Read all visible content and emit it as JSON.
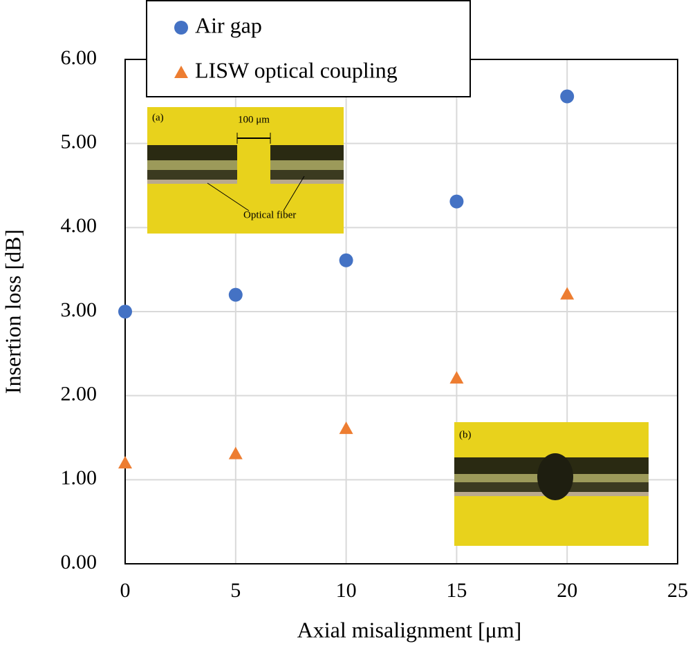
{
  "chart_data": {
    "type": "scatter",
    "x_label": "Axial misalignment [μm]",
    "y_label": "Insertion loss [dB]",
    "x": [
      0,
      5,
      10,
      15,
      20
    ],
    "series": [
      {
        "name": "Air gap",
        "color": "#4472c4",
        "marker": "circle",
        "values": [
          3.0,
          3.2,
          3.61,
          4.31,
          5.56
        ]
      },
      {
        "name": "LISW optical coupling",
        "color": "#ed7d31",
        "marker": "triangle",
        "values": [
          1.2,
          1.31,
          1.61,
          2.21,
          3.21
        ]
      }
    ],
    "xlim": [
      0,
      25
    ],
    "xticks": [
      0,
      5,
      10,
      15,
      20,
      25
    ],
    "ylim": [
      0,
      6
    ],
    "yticks": [
      {
        "value": 0,
        "label": "0.00"
      },
      {
        "value": 1,
        "label": "1.00"
      },
      {
        "value": 2,
        "label": "2.00"
      },
      {
        "value": 3,
        "label": "3.00"
      },
      {
        "value": 4,
        "label": "4.00"
      },
      {
        "value": 5,
        "label": "5.00"
      },
      {
        "value": 6,
        "label": "6.00"
      }
    ],
    "grid": true,
    "annotations": [
      "(a)",
      "100 μm",
      "Optical fiber",
      "(b)"
    ]
  }
}
